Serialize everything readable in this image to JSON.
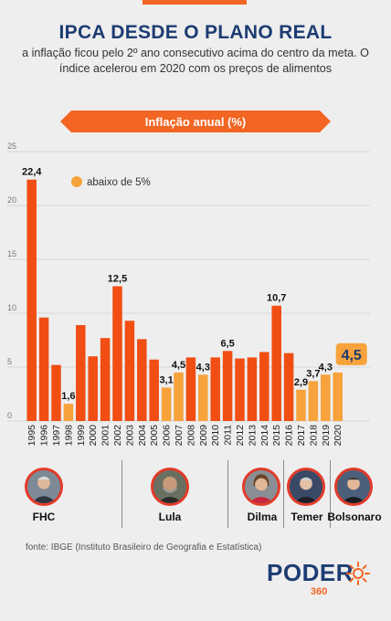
{
  "header": {
    "title": "IPCA DESDE O PLANO REAL",
    "subtitle": "a inflação ficou pelo 2º ano consecutivo acima do centro da meta. O índice acelerou em 2020 com os preços de alimentos"
  },
  "chart_data": {
    "type": "bar",
    "title": "Inflação anual (%)",
    "legend": "abaixo de 5%",
    "categories": [
      "1995",
      "1996",
      "1997",
      "1998",
      "1999",
      "2000",
      "2001",
      "2002",
      "2003",
      "2004",
      "2005",
      "2006",
      "2007",
      "2008",
      "2009",
      "2010",
      "2011",
      "2012",
      "2013",
      "2014",
      "2015",
      "2016",
      "2017",
      "2018",
      "2019",
      "2020"
    ],
    "values": [
      22.4,
      9.6,
      5.2,
      1.6,
      8.9,
      6.0,
      7.7,
      12.5,
      9.3,
      7.6,
      5.7,
      3.1,
      4.5,
      5.9,
      4.3,
      5.9,
      6.5,
      5.8,
      5.9,
      6.4,
      10.7,
      6.3,
      2.9,
      3.7,
      4.3,
      4.5
    ],
    "data_labels": {
      "1995": "22,4",
      "1998": "1,6",
      "2002": "12,5",
      "2006": "3,1",
      "2007": "4,5",
      "2009": "4,3",
      "2011": "6,5",
      "2015": "10,7",
      "2017": "2,9",
      "2018": "3,7",
      "2019": "4,3",
      "2020": "4,5"
    },
    "y_ticks": [
      0,
      5,
      10,
      15,
      20,
      25
    ],
    "ylim": [
      0,
      25
    ],
    "threshold": 5,
    "colors": {
      "above": "#f04e13",
      "below": "#f7a23b",
      "highlight_label_bg": "#f7a23b"
    }
  },
  "presidents": [
    {
      "name": "FHC"
    },
    {
      "name": "Lula"
    },
    {
      "name": "Dilma"
    },
    {
      "name": "Temer"
    },
    {
      "name": "Bolsonaro"
    }
  ],
  "footer": {
    "source": "fonte: IBGE (Instituto Brasileiro de Geografia e Estatística)",
    "logo_word": "PODER",
    "logo_number": "360"
  },
  "colors": {
    "brand_orange": "#f26522",
    "brand_blue": "#1d3c72"
  }
}
